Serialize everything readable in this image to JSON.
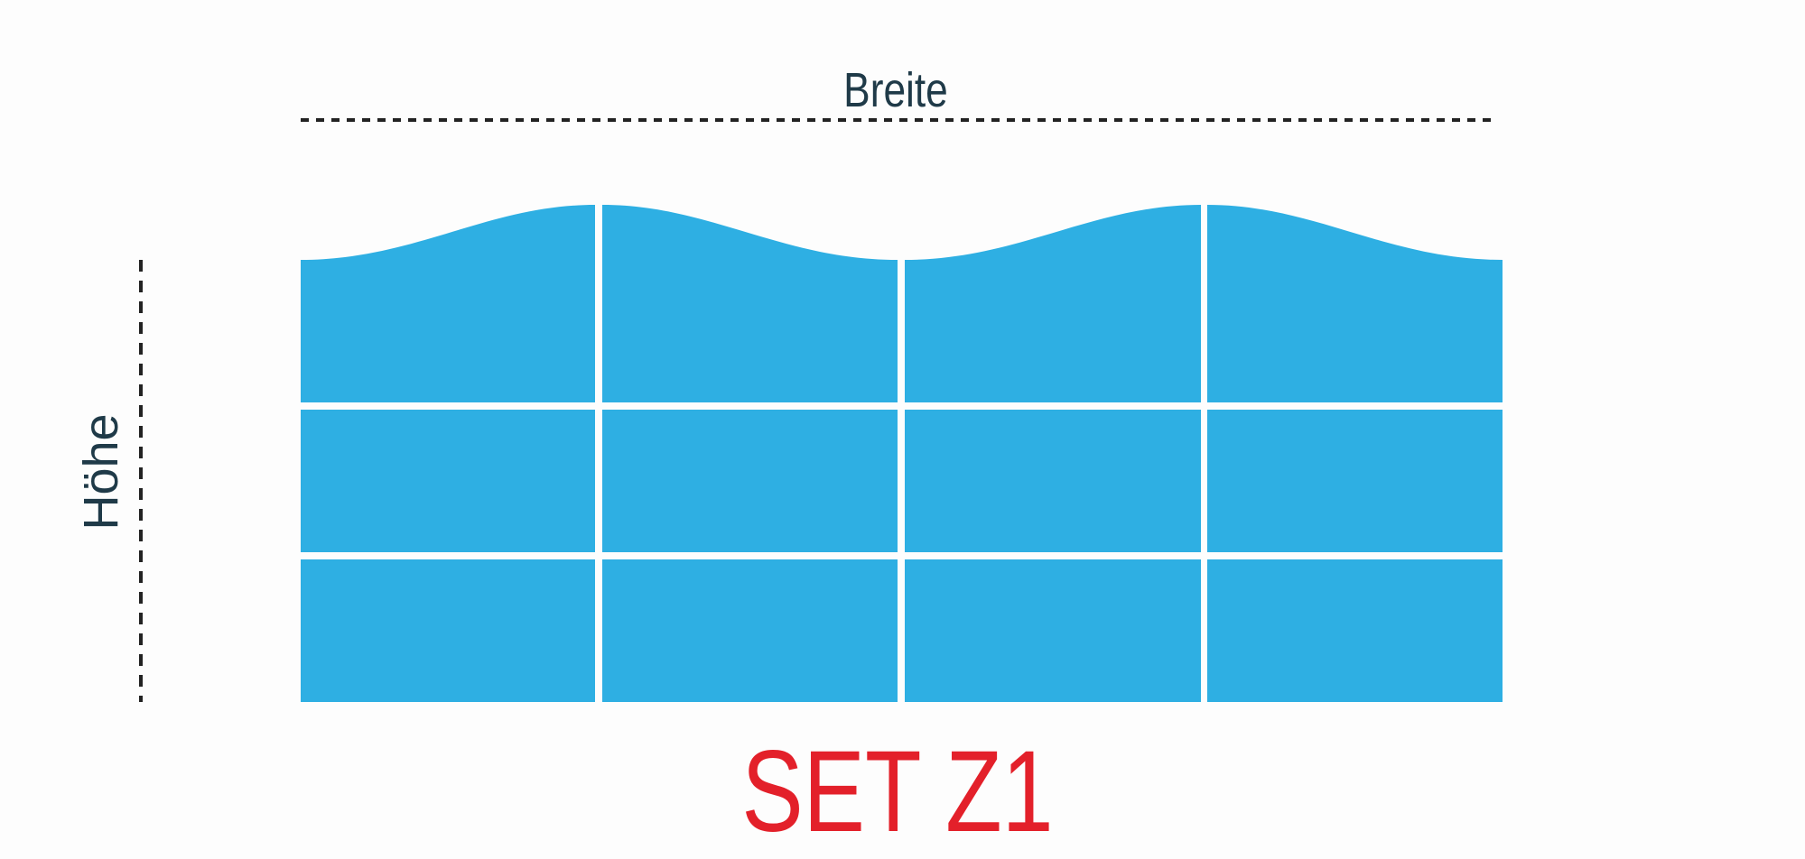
{
  "labels": {
    "width": "Breite",
    "height": "Höhe",
    "set_name": "SET Z1"
  },
  "grid": {
    "columns": 4,
    "rows": 3,
    "top_edge": "wave"
  },
  "colors": {
    "panel": "#2eafe3",
    "dimension_text": "#1f3a48",
    "dimension_line": "#222222",
    "set_name": "#e3202a"
  }
}
